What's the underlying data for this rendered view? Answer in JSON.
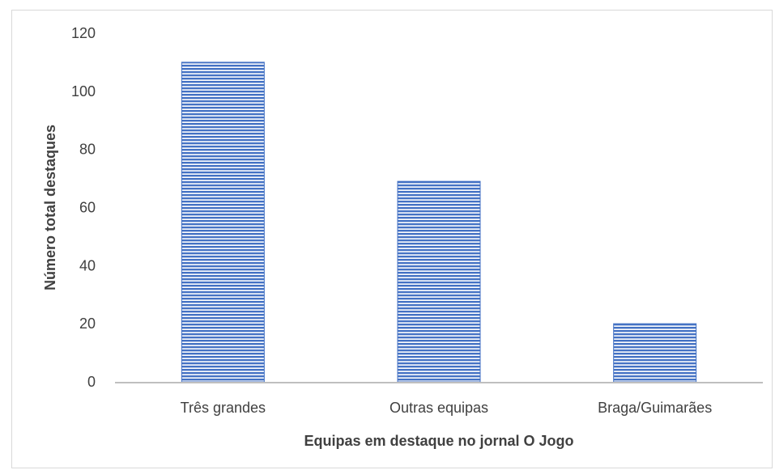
{
  "chart_data": {
    "type": "bar",
    "categories": [
      "Três grandes",
      "Outras equipas",
      "Braga/Guimarães"
    ],
    "values": [
      110,
      69,
      20
    ],
    "xlabel": "Equipas em destaque no jornal O Jogo",
    "ylabel": "Número total destaques",
    "ylim": [
      0,
      120
    ],
    "yticks": [
      0,
      20,
      40,
      60,
      80,
      100,
      120
    ],
    "grid": false,
    "bar_color": "#4472c4",
    "bar_pattern": "horizontal stripes"
  }
}
